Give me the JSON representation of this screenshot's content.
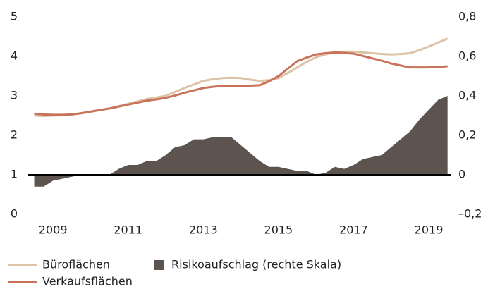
{
  "chart_data": {
    "type": "line",
    "x": [
      2008.5,
      2008.75,
      2009,
      2009.25,
      2009.5,
      2009.75,
      2010,
      2010.25,
      2010.5,
      2010.75,
      2011,
      2011.25,
      2011.5,
      2011.75,
      2012,
      2012.25,
      2012.5,
      2012.75,
      2013,
      2013.25,
      2013.5,
      2013.75,
      2014,
      2014.25,
      2014.5,
      2014.75,
      2015,
      2015.25,
      2015.5,
      2015.75,
      2016,
      2016.25,
      2016.5,
      2016.75,
      2017,
      2017.25,
      2017.5,
      2017.75,
      2018,
      2018.25,
      2018.5,
      2018.75,
      2019,
      2019.25,
      2019.5
    ],
    "xlim": [
      2008.34,
      2019.6
    ],
    "xticks": [
      2009,
      2011,
      2013,
      2015,
      2017,
      2019
    ],
    "ylim": [
      0,
      5
    ],
    "yticks": [
      0,
      1,
      2,
      3,
      4,
      5
    ],
    "y2lim": [
      -0.2,
      0.8
    ],
    "y2ticks": [
      {
        "value": -0.2,
        "label": "–0,2"
      },
      0,
      {
        "value": 0.2,
        "label": "0,2"
      },
      {
        "value": 0.4,
        "label": "0,4"
      },
      {
        "value": 0.6,
        "label": "0,6"
      },
      {
        "value": 0.8,
        "label": "0,8"
      }
    ],
    "series": [
      {
        "name": "Büroflächen",
        "color": "#dcc3a6",
        "values": [
          2.5,
          2.49,
          2.5,
          2.51,
          2.53,
          2.56,
          2.6,
          2.64,
          2.68,
          2.74,
          2.8,
          2.86,
          2.92,
          2.96,
          3.0,
          3.1,
          3.2,
          3.29,
          3.38,
          3.42,
          3.45,
          3.46,
          3.45,
          3.41,
          3.38,
          3.4,
          3.45,
          3.58,
          3.72,
          3.86,
          3.98,
          4.05,
          4.1,
          4.12,
          4.12,
          4.1,
          4.08,
          4.06,
          4.05,
          4.06,
          4.08,
          4.16,
          4.25,
          4.35,
          4.45
        ]
      },
      {
        "name": "Verkaufsflächen",
        "color": "#c8735a",
        "values": [
          2.55,
          2.53,
          2.52,
          2.52,
          2.53,
          2.56,
          2.6,
          2.64,
          2.68,
          2.73,
          2.78,
          2.83,
          2.88,
          2.91,
          2.95,
          3.01,
          3.08,
          3.14,
          3.2,
          3.23,
          3.25,
          3.25,
          3.25,
          3.26,
          3.27,
          3.37,
          3.5,
          3.69,
          3.88,
          3.97,
          4.05,
          4.08,
          4.1,
          4.09,
          4.07,
          4.01,
          3.95,
          3.89,
          3.82,
          3.77,
          3.72,
          3.72,
          3.72,
          3.73,
          3.75
        ]
      },
      {
        "name": "Risikoaufschlag (rechte Skala)",
        "color": "#5e544f",
        "axis": "y2",
        "kind": "area",
        "values": [
          -0.06,
          -0.06,
          -0.03,
          -0.02,
          -0.01,
          0,
          0,
          0,
          0,
          0.03,
          0.05,
          0.05,
          0.07,
          0.07,
          0.1,
          0.14,
          0.15,
          0.18,
          0.18,
          0.19,
          0.19,
          0.19,
          0.15,
          0.11,
          0.07,
          0.04,
          0.04,
          0.03,
          0.02,
          0.02,
          0,
          0.01,
          0.04,
          0.03,
          0.05,
          0.08,
          0.09,
          0.1,
          0.14,
          0.18,
          0.22,
          0.28,
          0.33,
          0.38,
          0.4
        ]
      }
    ]
  }
}
